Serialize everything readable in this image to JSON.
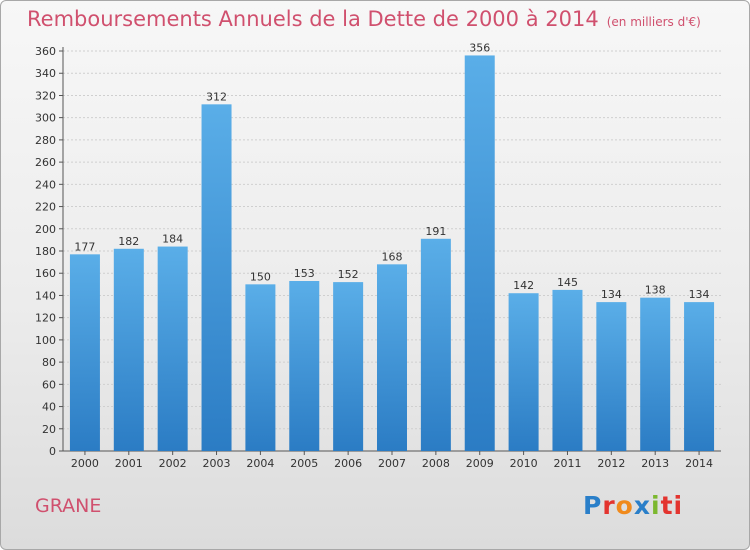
{
  "header": {
    "title": "Remboursements Annuels de la Dette de 2000 à 2014",
    "unit": "(en milliers d'€)"
  },
  "footer": {
    "commune": "GRANE",
    "logo_letters": [
      "P",
      "r",
      "o",
      "x",
      "i",
      "ti"
    ]
  },
  "colors": {
    "bar_top": "#5aaee8",
    "bar_bottom": "#2b7cc4",
    "title": "#d0506e",
    "grid": "#cfcfcf"
  },
  "chart_data": {
    "type": "bar",
    "title": "Remboursements Annuels de la Dette de 2000 à 2014",
    "unit": "(en milliers d'€)",
    "categories": [
      "2000",
      "2001",
      "2002",
      "2003",
      "2004",
      "2005",
      "2006",
      "2007",
      "2008",
      "2009",
      "2010",
      "2011",
      "2012",
      "2013",
      "2014"
    ],
    "values": [
      177,
      182,
      184,
      312,
      150,
      153,
      152,
      168,
      191,
      356,
      142,
      145,
      134,
      138,
      134
    ],
    "ylim": [
      0,
      360
    ],
    "yticks": [
      0,
      20,
      40,
      60,
      80,
      100,
      120,
      140,
      160,
      180,
      200,
      220,
      240,
      260,
      280,
      300,
      320,
      340,
      360
    ],
    "grid": true,
    "xlabel": "",
    "ylabel": ""
  }
}
